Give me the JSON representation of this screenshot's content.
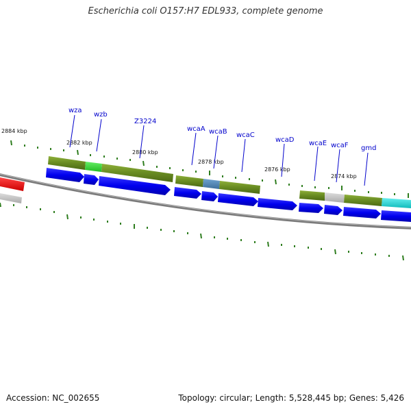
{
  "title": "Escherichia coli O157:H7 EDL933, complete genome",
  "accession": "Accession: NC_002655",
  "summary": "Topology: circular; Length: 5,528,445 bp; Genes: 5,426",
  "colors": {
    "cds_blue": "#0000ee",
    "cog_olive": "#6b8e23",
    "cog_green": "#33cc33",
    "cog_steelblue": "#4682b4",
    "cog_gray": "#bbbbbb",
    "cog_cyan": "#22cccc",
    "highlight_red": "#ee0000",
    "backbone": "#808080",
    "tick": "#2e7d1e",
    "label": "#0000cc"
  },
  "scale_labels": [
    "2884 kbp",
    "2882 kbp",
    "2880 kbp",
    "2878 kbp",
    "2876 kbp",
    "2874 kbp"
  ],
  "gene_labels": [
    "wza",
    "wzb",
    "Z3224",
    "wcaA",
    "wcaB",
    "wcaC",
    "wcaD",
    "wcaE",
    "wcaF",
    "gmd"
  ]
}
